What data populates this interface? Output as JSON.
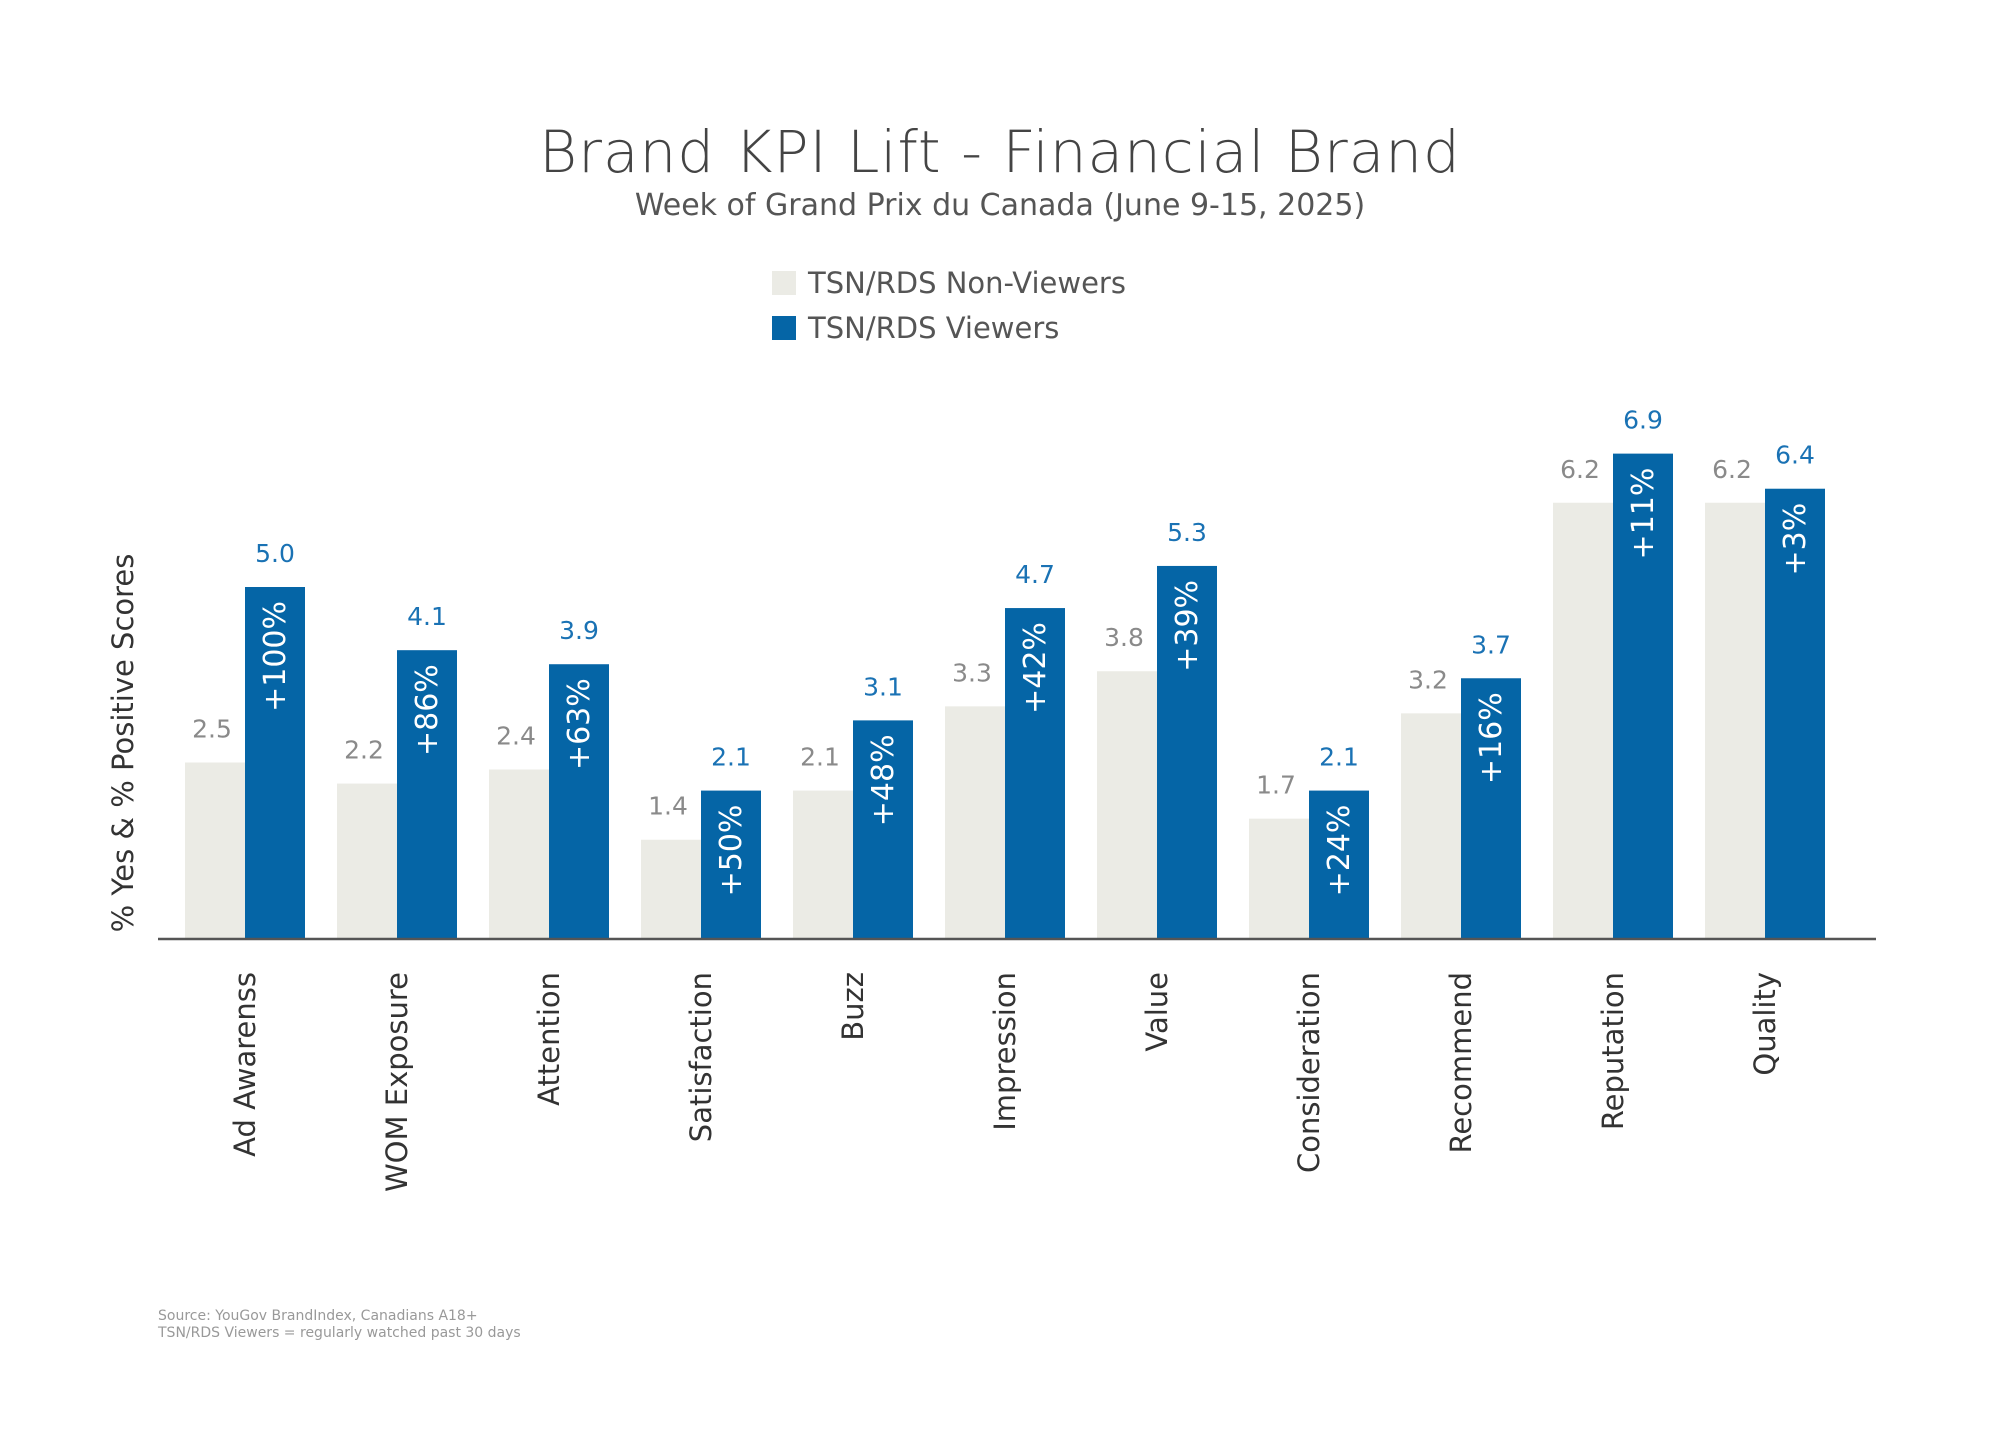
{
  "chart_data": {
    "type": "bar",
    "title": "Brand KPI Lift - Financial Brand",
    "subtitle": "Week of Grand Prix du Canada (June 9-15, 2025)",
    "ylabel": "% Yes & % Positive Scores",
    "xlabel": "",
    "categories": [
      "Ad Awarenss",
      "WOM Exposure",
      "Attention",
      "Satisfaction",
      "Buzz",
      "Impression",
      "Value",
      "Consideration",
      "Recommend",
      "Reputation",
      "Quality"
    ],
    "series": [
      {
        "name": "TSN/RDS Non-Viewers",
        "color": "#ebebe5",
        "label_color": "#8a8a8a",
        "values": [
          2.5,
          2.2,
          2.4,
          1.4,
          2.1,
          3.3,
          3.8,
          1.7,
          3.2,
          6.2,
          6.2
        ]
      },
      {
        "name": "TSN/RDS Viewers",
        "color": "#0565a6",
        "label_color": "#1a72b4",
        "values": [
          5.0,
          4.1,
          3.9,
          2.1,
          3.1,
          4.7,
          5.3,
          2.1,
          3.7,
          6.9,
          6.4
        ],
        "lift_labels": [
          "+100%",
          "+86%",
          "+63%",
          "+50%",
          "+48%",
          "+42%",
          "+39%",
          "+24%",
          "+16%",
          "+11%",
          "+3%"
        ]
      }
    ],
    "ylim": [
      0,
      7.5
    ],
    "grid": false,
    "y_axis_ticks_shown": false,
    "legend_position": "top-center"
  },
  "footer": {
    "source": "Source: YouGov BrandIndex, Canadians A18+",
    "note": "TSN/RDS Viewers = regularly watched past 30 days"
  }
}
